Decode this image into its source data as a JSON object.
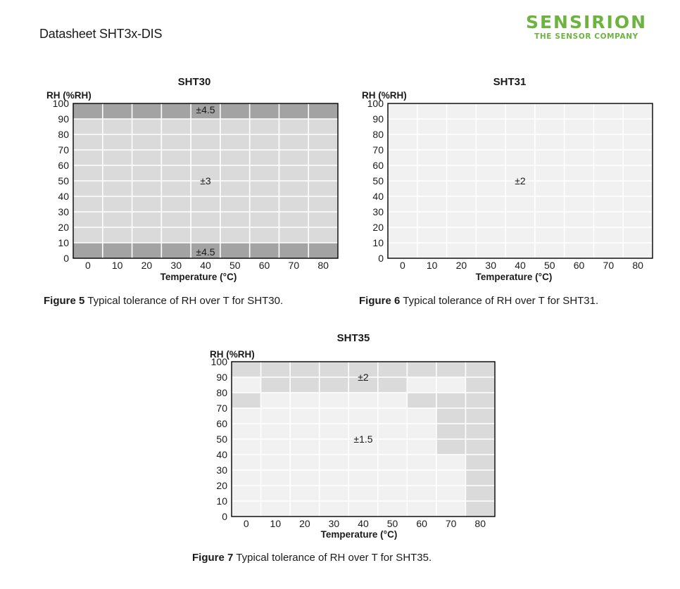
{
  "header": {
    "doc_title": "Datasheet SHT3x-DIS",
    "logo_name": "SENSIRION",
    "logo_tagline": "THE SENSOR COMPANY"
  },
  "colors": {
    "band_dark": "#a3a3a3",
    "band_mid": "#dadada",
    "band_light": "#f1f1f1",
    "grid_line": "#ffffff",
    "frame": "#000000"
  },
  "chart_data": [
    {
      "type": "heatmap",
      "title": "SHT30",
      "ylabel": "RH (%RH)",
      "xlabel": "Temperature (°C)",
      "x_ticks": [
        "0",
        "10",
        "20",
        "30",
        "40",
        "50",
        "60",
        "70",
        "80"
      ],
      "y_ticks": [
        "100",
        "90",
        "80",
        "70",
        "60",
        "50",
        "40",
        "30",
        "20",
        "10",
        "0"
      ],
      "xlim": [
        0,
        90
      ],
      "ylim": [
        0,
        100
      ],
      "regions": [
        {
          "x": [
            0,
            90
          ],
          "y": [
            90,
            100
          ],
          "shade": "dark"
        },
        {
          "x": [
            0,
            90
          ],
          "y": [
            10,
            90
          ],
          "shade": "mid"
        },
        {
          "x": [
            0,
            90
          ],
          "y": [
            0,
            10
          ],
          "shade": "dark"
        }
      ],
      "labels": [
        {
          "text": "±4.5",
          "x": 40,
          "y": 100
        },
        {
          "text": "±3",
          "x": 40,
          "y": 50
        },
        {
          "text": "±4.5",
          "x": 40,
          "y": 0
        }
      ],
      "caption_bold": "Figure 5",
      "caption_text": "Typical tolerance of RH over T for SHT30."
    },
    {
      "type": "heatmap",
      "title": "SHT31",
      "ylabel": "RH (%RH)",
      "xlabel": "Temperature (°C)",
      "x_ticks": [
        "0",
        "10",
        "20",
        "30",
        "40",
        "50",
        "60",
        "70",
        "80"
      ],
      "y_ticks": [
        "100",
        "90",
        "80",
        "70",
        "60",
        "50",
        "40",
        "30",
        "20",
        "10",
        "0"
      ],
      "xlim": [
        0,
        90
      ],
      "ylim": [
        0,
        100
      ],
      "regions": [
        {
          "x": [
            0,
            90
          ],
          "y": [
            0,
            100
          ],
          "shade": "light"
        }
      ],
      "labels": [
        {
          "text": "±2",
          "x": 40,
          "y": 50
        }
      ],
      "caption_bold": "Figure 6",
      "caption_text": "Typical tolerance of RH over T for SHT31."
    },
    {
      "type": "heatmap",
      "title": "SHT35",
      "ylabel": "RH (%RH)",
      "xlabel": "Temperature (°C)",
      "x_ticks": [
        "0",
        "10",
        "20",
        "30",
        "40",
        "50",
        "60",
        "70",
        "80"
      ],
      "y_ticks": [
        "100",
        "90",
        "80",
        "70",
        "60",
        "50",
        "40",
        "30",
        "20",
        "10",
        "0"
      ],
      "xlim": [
        0,
        90
      ],
      "ylim": [
        0,
        100
      ],
      "regions": [
        {
          "x": [
            0,
            90
          ],
          "y": [
            0,
            100
          ],
          "shade": "light"
        },
        {
          "x": [
            0,
            90
          ],
          "y": [
            90,
            100
          ],
          "shade": "mid"
        },
        {
          "x": [
            10,
            60
          ],
          "y": [
            80,
            90
          ],
          "shade": "mid"
        },
        {
          "x": [
            0,
            10
          ],
          "y": [
            70,
            80
          ],
          "shade": "mid"
        },
        {
          "x": [
            60,
            80
          ],
          "y": [
            70,
            80
          ],
          "shade": "mid"
        },
        {
          "x": [
            70,
            80
          ],
          "y": [
            40,
            70
          ],
          "shade": "mid"
        },
        {
          "x": [
            80,
            90
          ],
          "y": [
            0,
            90
          ],
          "shade": "mid"
        }
      ],
      "labels": [
        {
          "text": "±2",
          "x": 40,
          "y": 90
        },
        {
          "text": "±1.5",
          "x": 40,
          "y": 50
        }
      ],
      "caption_bold": "Figure 7",
      "caption_text": "Typical tolerance of RH over T for SHT35."
    }
  ]
}
